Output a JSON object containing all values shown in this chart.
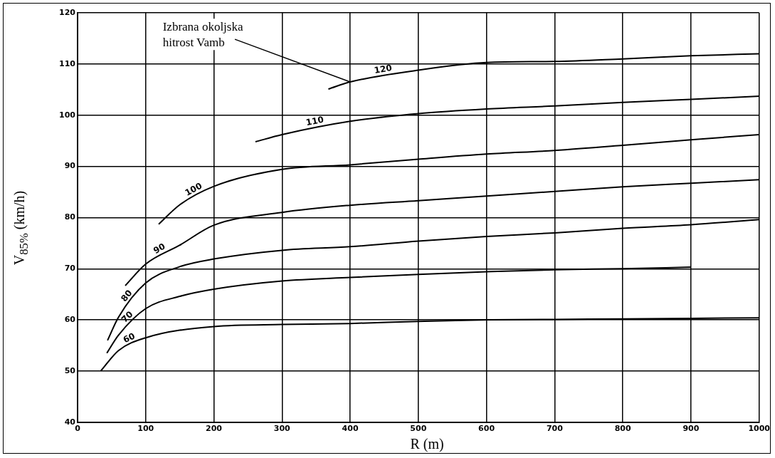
{
  "chart_data": {
    "type": "line",
    "xlabel": "R (m)",
    "ylabel": "V$_{85%}$ (km/h)",
    "xlim": [
      0,
      1000
    ],
    "xticks": [
      0,
      100,
      200,
      300,
      400,
      500,
      600,
      700,
      800,
      900,
      1000
    ],
    "ylim": [
      40,
      120
    ],
    "yticks": [
      40,
      50,
      60,
      70,
      80,
      90,
      100,
      110,
      120
    ],
    "grid": true,
    "legend": false,
    "marker": "none",
    "line_style": "solid",
    "annotations": [
      {
        "text": "Izbrana okoljska hitrost Vamb",
        "x": 400,
        "y": 106.5
      }
    ],
    "series": [
      {
        "name": "60",
        "color": "#000000",
        "x": [
          34,
          60,
          100,
          200,
          300,
          400,
          500,
          600,
          700,
          800,
          900,
          1000
        ],
        "values": [
          50,
          54,
          56.5,
          58.7,
          59.1,
          59.3,
          59.7,
          60,
          60.1,
          60.2,
          60.3,
          60.4
        ]
      },
      {
        "name": "70",
        "color": "#000000",
        "x": [
          43,
          60,
          100,
          150,
          200,
          300,
          400,
          500,
          600,
          700,
          800,
          900
        ],
        "values": [
          53.5,
          57,
          62.2,
          64.6,
          66,
          67.6,
          68.3,
          68.9,
          69.4,
          69.8,
          70,
          70.3
        ]
      },
      {
        "name": "80",
        "color": "#000000",
        "x": [
          44,
          60,
          100,
          150,
          200,
          300,
          400,
          500,
          600,
          700,
          800,
          900,
          1000
        ],
        "values": [
          56,
          60.5,
          67.2,
          70.4,
          71.9,
          73.6,
          74.3,
          75.4,
          76.3,
          77,
          77.9,
          78.6,
          79.6
        ]
      },
      {
        "name": "90",
        "color": "#000000",
        "x": [
          70,
          100,
          150,
          200,
          300,
          400,
          500,
          600,
          700,
          800,
          900,
          1000
        ],
        "values": [
          66.7,
          70.9,
          74.6,
          78.5,
          81,
          82.4,
          83.3,
          84.2,
          85.1,
          86,
          86.7,
          87.4
        ]
      },
      {
        "name": "100",
        "color": "#000000",
        "x": [
          119,
          150,
          200,
          300,
          400,
          500,
          600,
          700,
          800,
          900,
          1000
        ],
        "values": [
          78.7,
          82.5,
          86.1,
          89.4,
          90.3,
          91.4,
          92.4,
          93.1,
          94.1,
          95.2,
          96.2
        ]
      },
      {
        "name": "110",
        "color": "#000000",
        "x": [
          261,
          300,
          400,
          500,
          600,
          700,
          800,
          900,
          1000
        ],
        "values": [
          94.8,
          96.2,
          98.8,
          100.3,
          101.2,
          101.8,
          102.5,
          103.1,
          103.7
        ]
      },
      {
        "name": "120",
        "color": "#000000",
        "x": [
          368,
          400,
          500,
          600,
          700,
          800,
          900,
          1000
        ],
        "values": [
          105.1,
          106.5,
          108.8,
          110.3,
          110.5,
          111,
          111.6,
          112
        ]
      }
    ]
  }
}
